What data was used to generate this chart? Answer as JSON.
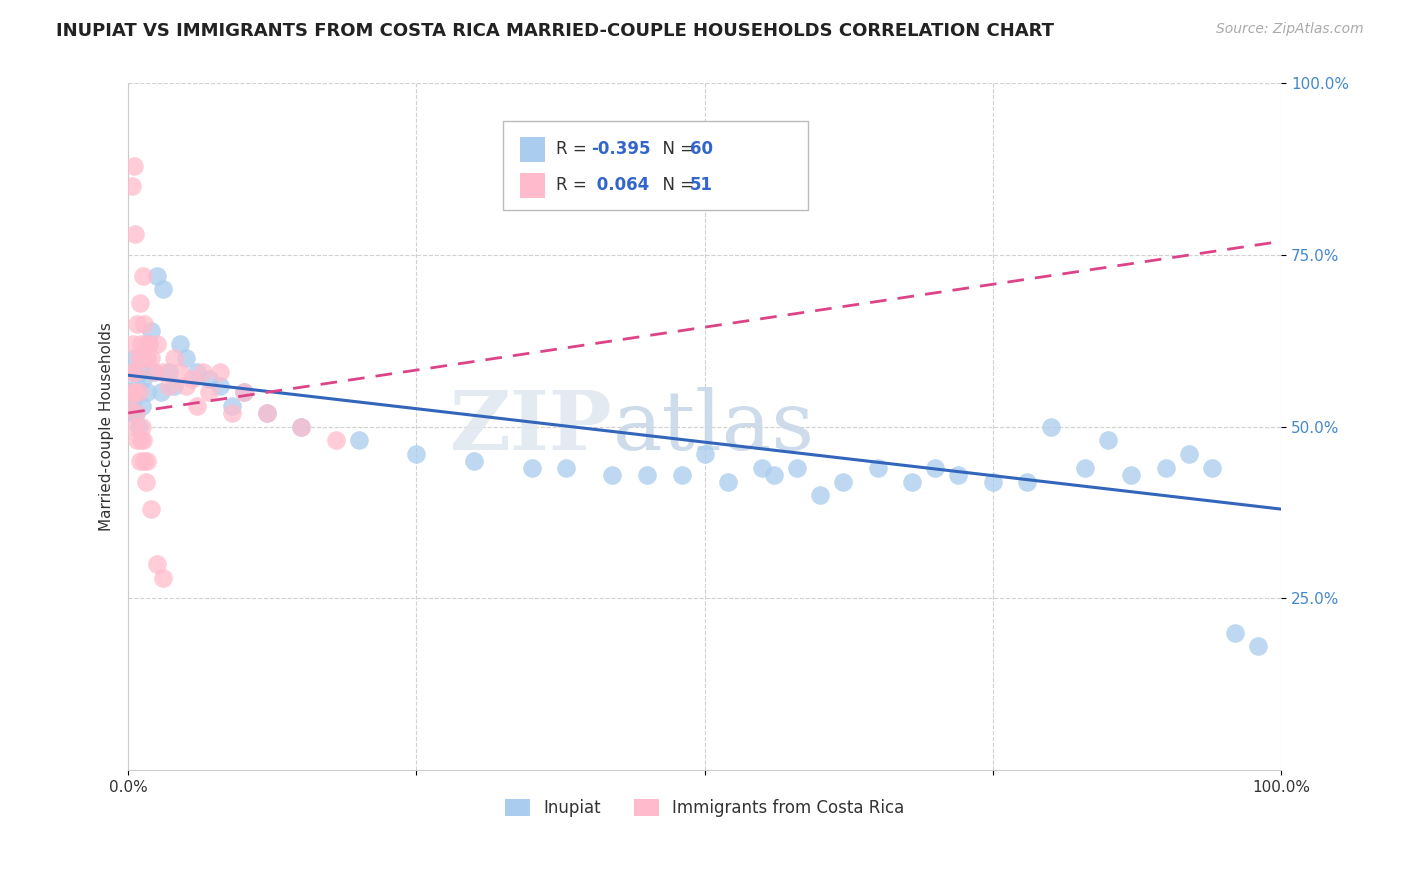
{
  "title": "INUPIAT VS IMMIGRANTS FROM COSTA RICA MARRIED-COUPLE HOUSEHOLDS CORRELATION CHART",
  "source": "Source: ZipAtlas.com",
  "ylabel": "Married-couple Households",
  "xlabel": "",
  "background_color": "#ffffff",
  "grid_color": "#cccccc",
  "inupiat": {
    "R": -0.395,
    "N": 60,
    "color": "#aaccee",
    "line_color": "#3366bb",
    "label": "Inupiat",
    "x": [
      0.002,
      0.003,
      0.004,
      0.005,
      0.006,
      0.007,
      0.008,
      0.009,
      0.01,
      0.012,
      0.013,
      0.015,
      0.016,
      0.018,
      0.02,
      0.022,
      0.025,
      0.028,
      0.03,
      0.035,
      0.04,
      0.045,
      0.05,
      0.06,
      0.07,
      0.08,
      0.09,
      0.1,
      0.12,
      0.15,
      0.2,
      0.25,
      0.3,
      0.35,
      0.38,
      0.42,
      0.45,
      0.48,
      0.5,
      0.52,
      0.55,
      0.56,
      0.58,
      0.6,
      0.62,
      0.65,
      0.68,
      0.7,
      0.72,
      0.75,
      0.78,
      0.8,
      0.83,
      0.85,
      0.87,
      0.9,
      0.92,
      0.94,
      0.96,
      0.98
    ],
    "y": [
      0.55,
      0.52,
      0.58,
      0.54,
      0.6,
      0.52,
      0.56,
      0.5,
      0.58,
      0.53,
      0.57,
      0.6,
      0.55,
      0.62,
      0.64,
      0.58,
      0.72,
      0.55,
      0.7,
      0.58,
      0.56,
      0.62,
      0.6,
      0.58,
      0.57,
      0.56,
      0.53,
      0.55,
      0.52,
      0.5,
      0.48,
      0.46,
      0.45,
      0.44,
      0.44,
      0.43,
      0.43,
      0.43,
      0.46,
      0.42,
      0.44,
      0.43,
      0.44,
      0.4,
      0.42,
      0.44,
      0.42,
      0.44,
      0.43,
      0.42,
      0.42,
      0.5,
      0.44,
      0.48,
      0.43,
      0.44,
      0.46,
      0.44,
      0.2,
      0.18
    ]
  },
  "costa_rica": {
    "R": 0.064,
    "N": 51,
    "color": "#ffbbcc",
    "line_color": "#dd4488",
    "label": "Immigrants from Costa Rica",
    "x": [
      0.001,
      0.002,
      0.003,
      0.004,
      0.005,
      0.006,
      0.007,
      0.008,
      0.009,
      0.01,
      0.011,
      0.012,
      0.013,
      0.014,
      0.015,
      0.016,
      0.018,
      0.02,
      0.022,
      0.025,
      0.03,
      0.035,
      0.04,
      0.045,
      0.05,
      0.055,
      0.06,
      0.065,
      0.07,
      0.08,
      0.09,
      0.1,
      0.12,
      0.15,
      0.18,
      0.004,
      0.005,
      0.006,
      0.007,
      0.008,
      0.009,
      0.01,
      0.011,
      0.012,
      0.013,
      0.014,
      0.015,
      0.016,
      0.02,
      0.025,
      0.03
    ],
    "y": [
      0.53,
      0.58,
      0.85,
      0.62,
      0.88,
      0.78,
      0.58,
      0.65,
      0.6,
      0.68,
      0.62,
      0.6,
      0.72,
      0.65,
      0.62,
      0.6,
      0.62,
      0.6,
      0.58,
      0.62,
      0.58,
      0.56,
      0.6,
      0.58,
      0.56,
      0.57,
      0.53,
      0.58,
      0.55,
      0.58,
      0.52,
      0.55,
      0.52,
      0.5,
      0.48,
      0.55,
      0.5,
      0.55,
      0.52,
      0.48,
      0.55,
      0.45,
      0.48,
      0.5,
      0.48,
      0.45,
      0.42,
      0.45,
      0.38,
      0.3,
      0.28
    ]
  },
  "xlim": [
    0.0,
    1.0
  ],
  "ylim": [
    0.0,
    1.0
  ],
  "xticks": [
    0.0,
    0.25,
    0.5,
    0.75,
    1.0
  ],
  "xtick_labels": [
    "0.0%",
    "",
    "",
    "",
    "100.0%"
  ],
  "yticks": [
    0.25,
    0.5,
    0.75,
    1.0
  ],
  "ytick_labels": [
    "25.0%",
    "50.0%",
    "75.0%",
    "100.0%"
  ],
  "title_fontsize": 13,
  "source_fontsize": 10,
  "axis_fontsize": 11,
  "tick_fontsize": 11,
  "inupiat_line": {
    "x0": 0.0,
    "y0": 0.575,
    "x1": 1.0,
    "y1": 0.38
  },
  "cr_line": {
    "x0": 0.0,
    "y0": 0.52,
    "x1": 1.0,
    "y1": 0.77
  }
}
